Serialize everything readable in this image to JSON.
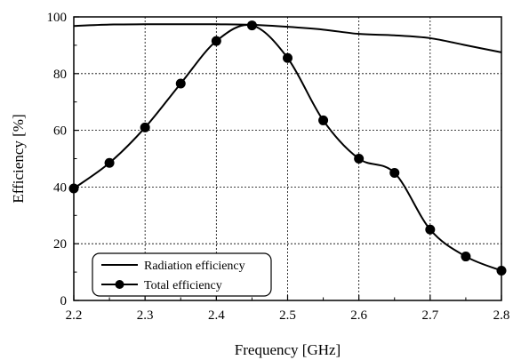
{
  "chart_data": {
    "type": "line",
    "title": "",
    "xlabel": "Frequency [GHz]",
    "ylabel": "Efficiency [%]",
    "xlim": [
      2.2,
      2.8
    ],
    "ylim": [
      0,
      100
    ],
    "x_ticks": [
      "2.2",
      "2.3",
      "2.4",
      "2.5",
      "2.6",
      "2.7",
      "2.8"
    ],
    "y_ticks": [
      "0",
      "20",
      "40",
      "60",
      "80",
      "100"
    ],
    "grid": true,
    "legend_position": "bottom-left",
    "series": [
      {
        "name": "Radiation efficiency",
        "marker": "none",
        "color": "#000000",
        "x": [
          2.2,
          2.25,
          2.3,
          2.35,
          2.4,
          2.45,
          2.5,
          2.55,
          2.6,
          2.65,
          2.7,
          2.75,
          2.8
        ],
        "y": [
          96.8,
          97.3,
          97.4,
          97.4,
          97.4,
          97.2,
          96.5,
          95.5,
          94.0,
          93.5,
          92.5,
          90.0,
          87.5
        ]
      },
      {
        "name": "Total efficiency",
        "marker": "circle",
        "color": "#000000",
        "x": [
          2.2,
          2.25,
          2.3,
          2.35,
          2.4,
          2.45,
          2.5,
          2.55,
          2.6,
          2.65,
          2.7,
          2.75,
          2.8
        ],
        "y": [
          39.5,
          48.5,
          61.0,
          76.5,
          91.5,
          97.0,
          85.5,
          63.5,
          50.0,
          45.0,
          25.0,
          15.5,
          10.5
        ]
      }
    ]
  }
}
